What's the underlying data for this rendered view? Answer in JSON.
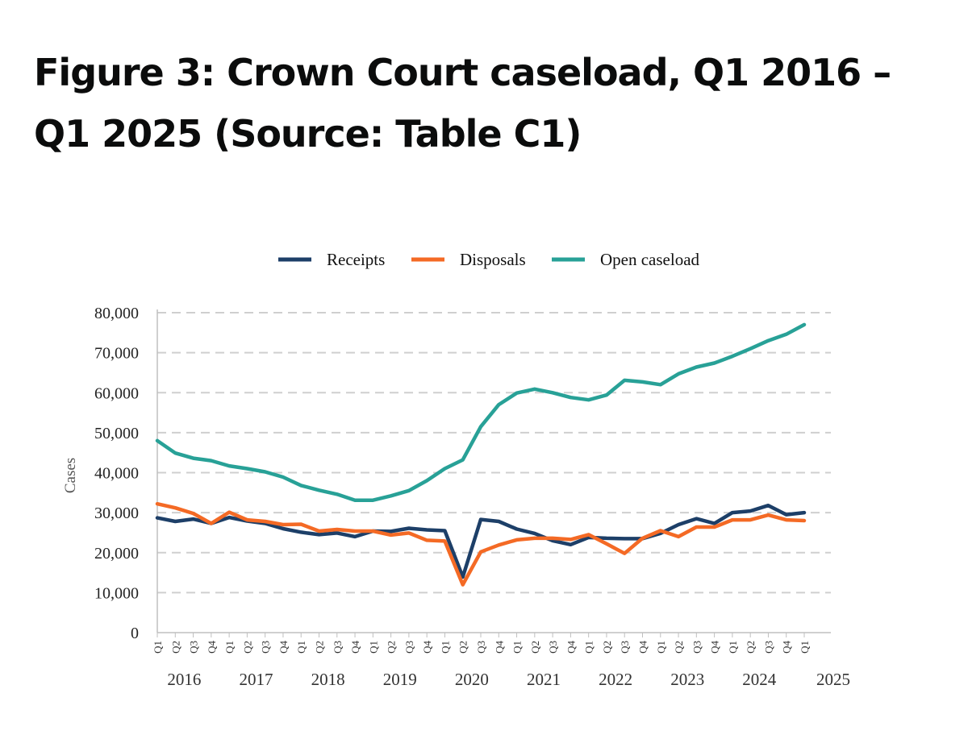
{
  "page": {
    "title": "Figure 3: Crown Court caseload, Q1 2016 – Q1 2025 (Source: Table C1)"
  },
  "chart_data": {
    "type": "line",
    "title": "Figure 3: Crown Court caseload, Q1 2016 – Q1 2025 (Source: Table C1)",
    "xlabel": "",
    "ylabel": "Cases",
    "ylim": [
      0,
      80000
    ],
    "yticks": [
      0,
      10000,
      20000,
      30000,
      40000,
      50000,
      60000,
      70000,
      80000
    ],
    "ytick_labels": [
      "0",
      "10,000",
      "20,000",
      "30,000",
      "40,000",
      "50,000",
      "60,000",
      "70,000",
      "80,000"
    ],
    "grid": "horizontal dashed",
    "legend_position": "top",
    "categories": [
      "Q1",
      "Q2",
      "Q3",
      "Q4",
      "Q1",
      "Q2",
      "Q3",
      "Q4",
      "Q1",
      "Q2",
      "Q3",
      "Q4",
      "Q1",
      "Q2",
      "Q3",
      "Q4",
      "Q1",
      "Q2",
      "Q3",
      "Q4",
      "Q1",
      "Q2",
      "Q3",
      "Q4",
      "Q1",
      "Q2",
      "Q3",
      "Q4",
      "Q1",
      "Q2",
      "Q3",
      "Q4",
      "Q1",
      "Q2",
      "Q3",
      "Q4",
      "Q1"
    ],
    "years": [
      "2016",
      "2017",
      "2018",
      "2019",
      "2020",
      "2021",
      "2022",
      "2023",
      "2024",
      "2025"
    ],
    "series": [
      {
        "name": "Receipts",
        "color": "#1d3f68",
        "values": [
          28700,
          27800,
          28400,
          27300,
          28800,
          27900,
          27300,
          26000,
          25100,
          24500,
          24900,
          24000,
          25400,
          25300,
          26100,
          25700,
          25500,
          13900,
          28300,
          27800,
          25900,
          24800,
          23000,
          22000,
          23800,
          23600,
          23500,
          23500,
          24800,
          27000,
          28500,
          27300,
          30000,
          30400,
          31800,
          29500,
          30000
        ]
      },
      {
        "name": "Disposals",
        "color": "#f46a25",
        "values": [
          32200,
          31200,
          29800,
          27300,
          30100,
          28200,
          27800,
          27000,
          27100,
          25400,
          25800,
          25400,
          25400,
          24400,
          24900,
          23100,
          22900,
          12000,
          20200,
          21900,
          23200,
          23600,
          23600,
          23300,
          24500,
          22200,
          19800,
          23600,
          25500,
          24000,
          26400,
          26400,
          28200,
          28200,
          29400,
          28200,
          28000
        ]
      },
      {
        "name": "Open caseload",
        "color": "#28a197",
        "values": [
          48000,
          44900,
          43600,
          43000,
          41700,
          41000,
          40200,
          38900,
          36800,
          35600,
          34600,
          33100,
          33100,
          34200,
          35500,
          38000,
          41000,
          43200,
          51500,
          57000,
          59900,
          60900,
          60000,
          58800,
          58200,
          59400,
          63100,
          62700,
          62000,
          64700,
          66400,
          67400,
          69100,
          71000,
          73000,
          74600,
          77000
        ]
      }
    ]
  }
}
